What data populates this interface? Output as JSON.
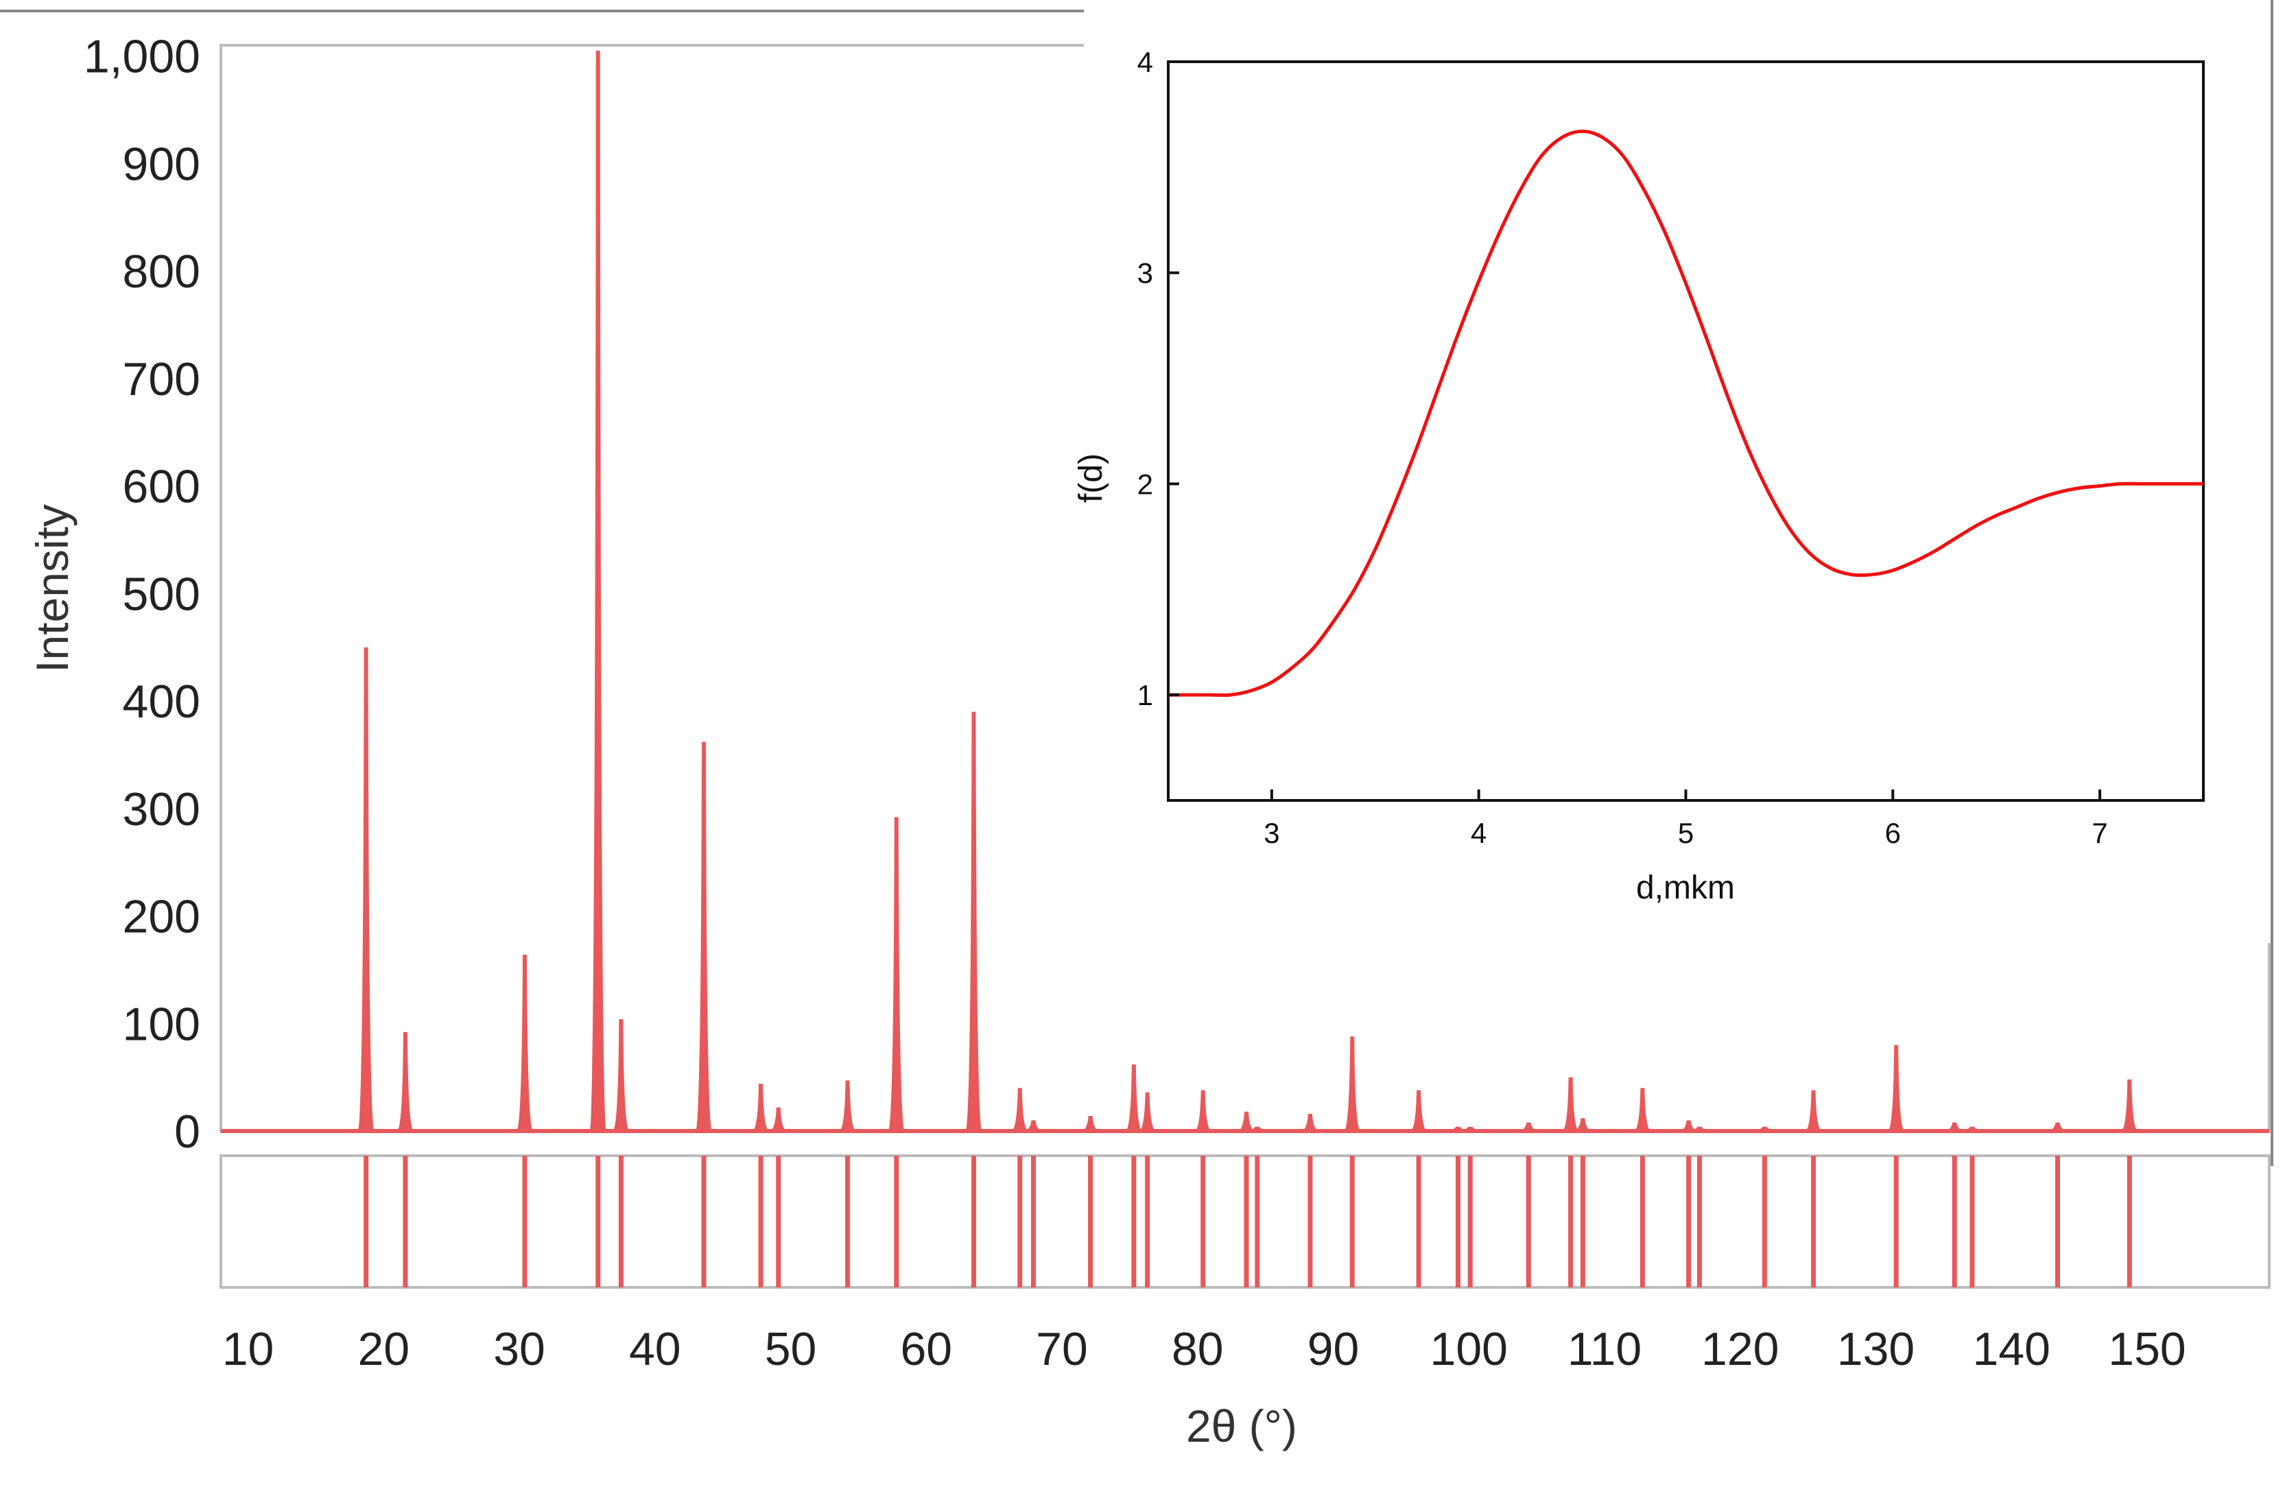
{
  "chart_data": [
    {
      "type": "bar",
      "title": "",
      "xlabel": "2θ (°)",
      "ylabel": "Intensity",
      "xlim": [
        8,
        159
      ],
      "ylim": [
        0,
        1010
      ],
      "grid": false,
      "x_ticks": [
        10,
        20,
        30,
        40,
        50,
        60,
        70,
        80,
        90,
        100,
        110,
        120,
        130,
        140,
        150
      ],
      "y_ticks": [
        0,
        100,
        200,
        300,
        400,
        500,
        600,
        700,
        800,
        900,
        1000
      ],
      "y_tick_labels": [
        "0",
        "100",
        "200",
        "300",
        "400",
        "500",
        "600",
        "700",
        "800",
        "900",
        "1,000"
      ],
      "series": [
        {
          "color": "#e8585a",
          "peaks": [
            [
              18.7,
              450
            ],
            [
              21.6,
              92
            ],
            [
              30.4,
              164
            ],
            [
              35.8,
              1005
            ],
            [
              37.5,
              104
            ],
            [
              43.6,
              362
            ],
            [
              47.8,
              44
            ],
            [
              49.1,
              22
            ],
            [
              54.2,
              47
            ],
            [
              57.8,
              292
            ],
            [
              63.5,
              390
            ],
            [
              66.9,
              40
            ],
            [
              67.9,
              10
            ],
            [
              72.1,
              14
            ],
            [
              75.3,
              62
            ],
            [
              76.3,
              36
            ],
            [
              80.4,
              38
            ],
            [
              83.6,
              18
            ],
            [
              84.4,
              4
            ],
            [
              88.3,
              16
            ],
            [
              91.4,
              88
            ],
            [
              96.3,
              38
            ],
            [
              99.2,
              4
            ],
            [
              100.1,
              4
            ],
            [
              104.4,
              8
            ],
            [
              107.5,
              50
            ],
            [
              108.4,
              12
            ],
            [
              112.8,
              40
            ],
            [
              116.2,
              10
            ],
            [
              117.0,
              4
            ],
            [
              121.8,
              4
            ],
            [
              125.4,
              38
            ],
            [
              131.5,
              80
            ],
            [
              135.8,
              8
            ],
            [
              137.1,
              4
            ],
            [
              143.4,
              8
            ],
            [
              148.7,
              48
            ]
          ]
        }
      ],
      "reference_lines": [
        18.7,
        21.6,
        30.4,
        35.8,
        37.5,
        43.6,
        47.8,
        49.1,
        54.2,
        57.8,
        63.5,
        66.9,
        67.9,
        72.1,
        75.3,
        76.3,
        80.4,
        83.6,
        84.4,
        88.3,
        91.4,
        96.3,
        99.2,
        100.1,
        104.4,
        107.5,
        108.4,
        112.8,
        116.2,
        117.0,
        121.8,
        125.4,
        131.5,
        135.8,
        137.1,
        143.4,
        148.7
      ]
    },
    {
      "type": "line",
      "title": "",
      "xlabel": "d,mkm",
      "ylabel": "f(d)",
      "xlim": [
        2.5,
        7.5
      ],
      "ylim": [
        0.5,
        4
      ],
      "grid": false,
      "x_ticks": [
        3,
        4,
        5,
        6,
        7
      ],
      "y_ticks": [
        1,
        2,
        3,
        4
      ],
      "series": [
        {
          "color": "#ee1111",
          "x": [
            2.5,
            2.6,
            2.7,
            2.8,
            2.9,
            3.0,
            3.1,
            3.2,
            3.3,
            3.4,
            3.5,
            3.6,
            3.7,
            3.8,
            3.9,
            4.0,
            4.1,
            4.2,
            4.3,
            4.4,
            4.5,
            4.6,
            4.7,
            4.8,
            4.9,
            5.0,
            5.1,
            5.2,
            5.3,
            5.4,
            5.5,
            5.6,
            5.7,
            5.8,
            5.9,
            6.0,
            6.1,
            6.2,
            6.3,
            6.4,
            6.5,
            6.6,
            6.7,
            6.8,
            6.9,
            7.0,
            7.1,
            7.2,
            7.3,
            7.4,
            7.5
          ],
          "y": [
            1.0,
            1.0,
            1.0,
            1.0,
            1.02,
            1.06,
            1.13,
            1.22,
            1.35,
            1.5,
            1.69,
            1.92,
            2.17,
            2.44,
            2.71,
            2.96,
            3.19,
            3.39,
            3.55,
            3.64,
            3.67,
            3.64,
            3.55,
            3.39,
            3.19,
            2.95,
            2.69,
            2.42,
            2.17,
            1.96,
            1.79,
            1.67,
            1.6,
            1.57,
            1.57,
            1.59,
            1.63,
            1.68,
            1.74,
            1.8,
            1.85,
            1.89,
            1.93,
            1.96,
            1.98,
            1.99,
            2.0,
            2.0,
            2.0,
            2.0,
            2.0
          ]
        }
      ]
    }
  ]
}
